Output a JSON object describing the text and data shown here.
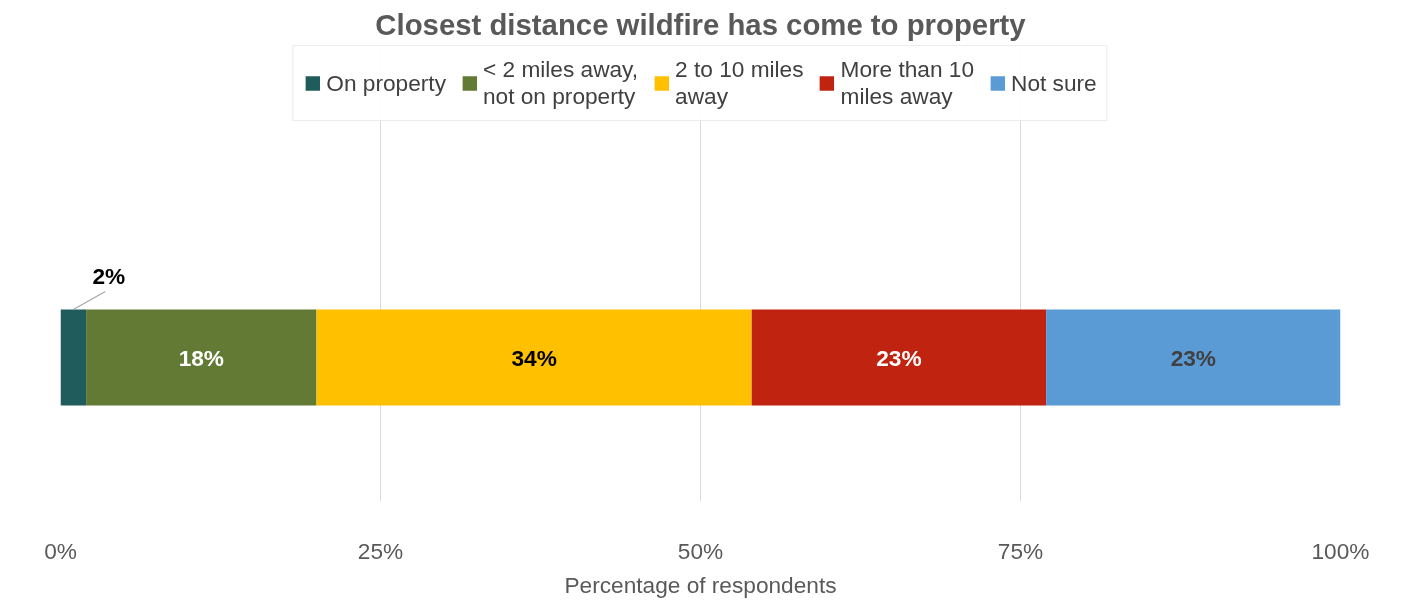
{
  "chart_data": {
    "type": "bar",
    "orientation": "horizontal",
    "stacked": true,
    "title": "Closest distance wildfire has come to property",
    "xlabel": "Percentage of respondents",
    "categories": [
      null
    ],
    "series": [
      {
        "name": "On property",
        "color": "#1f5c5b",
        "values": [
          2
        ],
        "value_labels": [
          "2%"
        ]
      },
      {
        "name": "< 2 miles away, not on property",
        "color": "#637a35",
        "values": [
          18
        ],
        "value_labels": [
          "18%"
        ]
      },
      {
        "name": "2 to 10 miles away",
        "color": "#ffc000",
        "values": [
          34
        ],
        "value_labels": [
          "34%"
        ]
      },
      {
        "name": "More than 10 miles away",
        "color": "#c0230f",
        "values": [
          23
        ],
        "value_labels": [
          "23%"
        ]
      },
      {
        "name": "Not sure",
        "color": "#5b9bd5",
        "values": [
          23
        ],
        "value_labels": [
          "23%"
        ]
      }
    ],
    "xlim": [
      0,
      100
    ],
    "xticks": [
      {
        "value": 0,
        "label": "0%"
      },
      {
        "value": 25,
        "label": "25%"
      },
      {
        "value": 50,
        "label": "50%"
      },
      {
        "value": 75,
        "label": "75%"
      },
      {
        "value": 100,
        "label": "100%"
      }
    ],
    "grid": "x",
    "legend": "top"
  }
}
